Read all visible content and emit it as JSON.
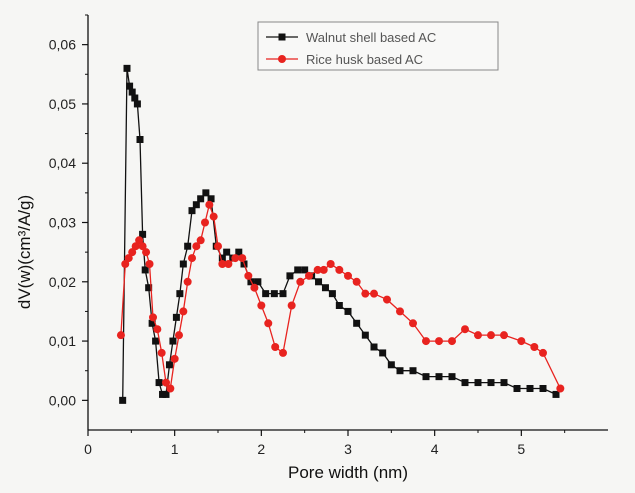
{
  "chart_data": {
    "type": "line",
    "xlabel": "Pore width (nm)",
    "ylabel": "dV(w)(cm³/A/g)",
    "xlim": [
      0,
      6
    ],
    "ylim": [
      -0.005,
      0.065
    ],
    "x_ticks": [
      "0",
      "1",
      "2",
      "3",
      "4",
      "5"
    ],
    "y_ticks": [
      "0,00",
      "0,01",
      "0,02",
      "0,03",
      "0,04",
      "0,05",
      "0,06"
    ],
    "grid": false,
    "legend_position": "top-right",
    "series": [
      {
        "name": "Walnut shell based AC",
        "color": "#111111",
        "marker": "square",
        "x": [
          0.4,
          0.45,
          0.48,
          0.51,
          0.54,
          0.57,
          0.6,
          0.63,
          0.66,
          0.7,
          0.74,
          0.78,
          0.82,
          0.86,
          0.9,
          0.94,
          0.98,
          1.02,
          1.06,
          1.1,
          1.15,
          1.2,
          1.25,
          1.3,
          1.36,
          1.42,
          1.48,
          1.55,
          1.6,
          1.67,
          1.74,
          1.8,
          1.88,
          1.96,
          2.05,
          2.15,
          2.25,
          2.33,
          2.42,
          2.5,
          2.58,
          2.66,
          2.74,
          2.82,
          2.9,
          3.0,
          3.1,
          3.2,
          3.3,
          3.4,
          3.5,
          3.6,
          3.75,
          3.9,
          4.05,
          4.2,
          4.35,
          4.5,
          4.65,
          4.8,
          4.95,
          5.1,
          5.25,
          5.4
        ],
        "y": [
          0.0,
          0.056,
          0.053,
          0.052,
          0.051,
          0.05,
          0.044,
          0.028,
          0.022,
          0.019,
          0.013,
          0.01,
          0.003,
          0.001,
          0.001,
          0.006,
          0.01,
          0.014,
          0.018,
          0.023,
          0.026,
          0.032,
          0.033,
          0.034,
          0.035,
          0.034,
          0.026,
          0.024,
          0.025,
          0.024,
          0.025,
          0.023,
          0.02,
          0.02,
          0.018,
          0.018,
          0.018,
          0.021,
          0.022,
          0.022,
          0.021,
          0.02,
          0.019,
          0.018,
          0.016,
          0.015,
          0.013,
          0.011,
          0.009,
          0.008,
          0.006,
          0.005,
          0.005,
          0.004,
          0.004,
          0.004,
          0.003,
          0.003,
          0.003,
          0.003,
          0.002,
          0.002,
          0.002,
          0.001
        ]
      },
      {
        "name": "Rice husk based AC",
        "color": "#e8231f",
        "marker": "circle",
        "x": [
          0.38,
          0.43,
          0.47,
          0.51,
          0.55,
          0.59,
          0.63,
          0.67,
          0.71,
          0.75,
          0.8,
          0.85,
          0.9,
          0.95,
          1.0,
          1.05,
          1.1,
          1.15,
          1.2,
          1.25,
          1.3,
          1.35,
          1.4,
          1.45,
          1.5,
          1.55,
          1.62,
          1.7,
          1.78,
          1.85,
          1.92,
          2.0,
          2.08,
          2.16,
          2.25,
          2.35,
          2.45,
          2.55,
          2.65,
          2.72,
          2.8,
          2.9,
          3.0,
          3.1,
          3.2,
          3.3,
          3.45,
          3.6,
          3.75,
          3.9,
          4.05,
          4.2,
          4.35,
          4.5,
          4.65,
          4.8,
          5.0,
          5.15,
          5.25,
          5.45
        ],
        "y": [
          0.011,
          0.023,
          0.024,
          0.025,
          0.026,
          0.027,
          0.026,
          0.025,
          0.023,
          0.014,
          0.012,
          0.008,
          0.003,
          0.002,
          0.007,
          0.011,
          0.015,
          0.02,
          0.024,
          0.026,
          0.027,
          0.03,
          0.033,
          0.031,
          0.026,
          0.023,
          0.023,
          0.024,
          0.024,
          0.021,
          0.019,
          0.016,
          0.013,
          0.009,
          0.008,
          0.016,
          0.02,
          0.021,
          0.022,
          0.022,
          0.023,
          0.022,
          0.021,
          0.02,
          0.018,
          0.018,
          0.017,
          0.015,
          0.013,
          0.01,
          0.01,
          0.01,
          0.012,
          0.011,
          0.011,
          0.011,
          0.01,
          0.009,
          0.008,
          0.002
        ]
      }
    ]
  }
}
